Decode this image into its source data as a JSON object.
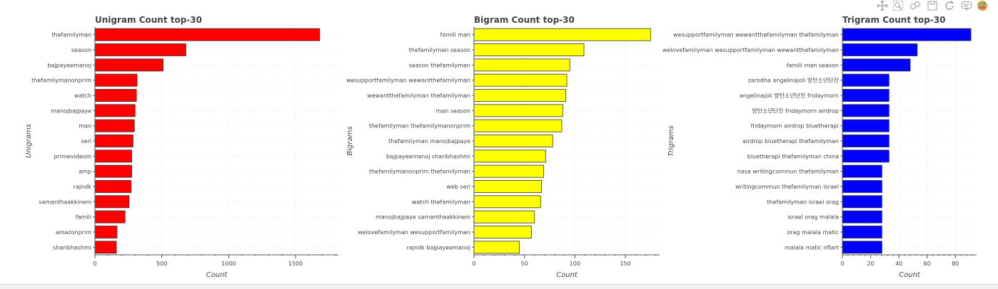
{
  "toolbar": {
    "tools": [
      {
        "name": "pan-tool",
        "icon": "pan-icon"
      },
      {
        "name": "box-zoom-tool",
        "icon": "box-zoom-icon"
      },
      {
        "name": "wheel-zoom-tool",
        "icon": "wheel-zoom-icon"
      },
      {
        "name": "save-tool",
        "icon": "save-icon"
      },
      {
        "name": "reset-tool",
        "icon": "reset-icon"
      },
      {
        "name": "hover-tool",
        "icon": "hover-icon"
      },
      {
        "name": "bokeh-logo",
        "icon": "bokeh-logo-icon"
      }
    ]
  },
  "chart_data": [
    {
      "type": "bar",
      "orientation": "horizontal",
      "title": "Unigram Count top-30",
      "xlabel": "Count",
      "ylabel": "Unigrams",
      "color": "#ff0000",
      "xlim": [
        0,
        1820
      ],
      "xticks": [
        0,
        500,
        1000,
        1500
      ],
      "grid": true,
      "categories": [
        "thefamilyman",
        "season",
        "bajpayeemanoj",
        "thefamilymanonprim",
        "watch",
        "manojbajpaye",
        "man",
        "seri",
        "primevideoin",
        "amp",
        "rajndk",
        "samanthaakkineni",
        "famili",
        "amazonprim",
        "sharibhashmi"
      ],
      "values": [
        1680,
        680,
        510,
        315,
        310,
        300,
        295,
        285,
        275,
        275,
        270,
        255,
        225,
        165,
        160
      ]
    },
    {
      "type": "bar",
      "orientation": "horizontal",
      "title": "Bigram Count top-30",
      "xlabel": "Count",
      "ylabel": "Bigrams",
      "color": "#ffff00",
      "xlim": [
        0,
        184
      ],
      "xticks": [
        0,
        50,
        100,
        150
      ],
      "grid": true,
      "categories": [
        "famili man",
        "thefamilyman season",
        "season thefamilyman",
        "wesupportfamilyman wewantthefamilyman",
        "wewantthefamilyman thefamilyman",
        "man season",
        "thefamilyman thefamilymanonprim",
        "thefamilyman manojbajpaye",
        "bajpayeemanoj sharibhashmi",
        "thefamilymanonprim thefamilyman",
        "web seri",
        "watch thefamilyman",
        "manojbajpaye samanthaakkineni",
        "welovefamilyman wesupportfamilyman",
        "rajndk bajpayeemanoj"
      ],
      "values": [
        175,
        109,
        95,
        92,
        91,
        88,
        87,
        78,
        71,
        69,
        67,
        66,
        60,
        57,
        45
      ]
    },
    {
      "type": "bar",
      "orientation": "horizontal",
      "title": "Trigram Count top-30",
      "xlabel": "Count",
      "ylabel": "Trigrams",
      "color": "#0000ff",
      "xlim": [
        0,
        95
      ],
      "xticks": [
        0,
        20,
        40,
        60,
        80
      ],
      "grid": true,
      "categories": [
        "wesupportfamilyman wewantthefamilyman thefamilyman",
        "welovefamilyman wesupportfamilyman wewantthefamilyman",
        "famili man season",
        "zarodha angelinajoli 방탄소년단진",
        "angelinajoli 방탄소년단진 fridaymorn",
        "방탄소년단진 fridaymorn airdrop",
        "fridaymorn airdrop bluetherapi",
        "airdrop bluetherapi thefamilyman",
        "bluetherapi thefamilyman china",
        "nasa writingcommun thefamilyman",
        "writingcommun thefamilyman israel",
        "thefamilyman israel orag",
        "israel orag malala",
        "orag malala matic",
        "malala matic nflart"
      ],
      "values": [
        91,
        53,
        48,
        33,
        33,
        33,
        33,
        33,
        33,
        28,
        28,
        28,
        28,
        28,
        28
      ]
    }
  ]
}
